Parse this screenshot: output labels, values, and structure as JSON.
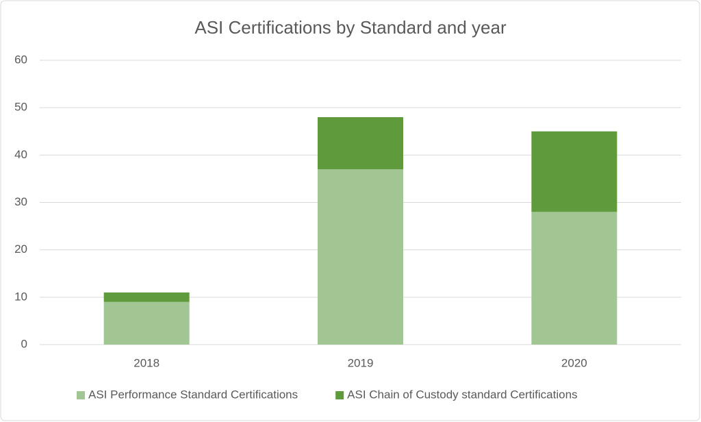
{
  "chart_data": {
    "type": "bar",
    "stacked": true,
    "title": "ASI Certifications by Standard and year",
    "categories": [
      "2018",
      "2019",
      "2020"
    ],
    "series": [
      {
        "name": "ASI Performance Standard Certifications",
        "color": "#a2c693",
        "values": [
          9,
          37,
          28
        ]
      },
      {
        "name": "ASI Chain of Custody standard Certifications",
        "color": "#5f9a3c",
        "values": [
          2,
          11,
          17
        ]
      }
    ],
    "ylim": [
      0,
      60
    ],
    "yticks": [
      0,
      10,
      20,
      30,
      40,
      50,
      60
    ],
    "grid": true,
    "legend": "bottom"
  }
}
